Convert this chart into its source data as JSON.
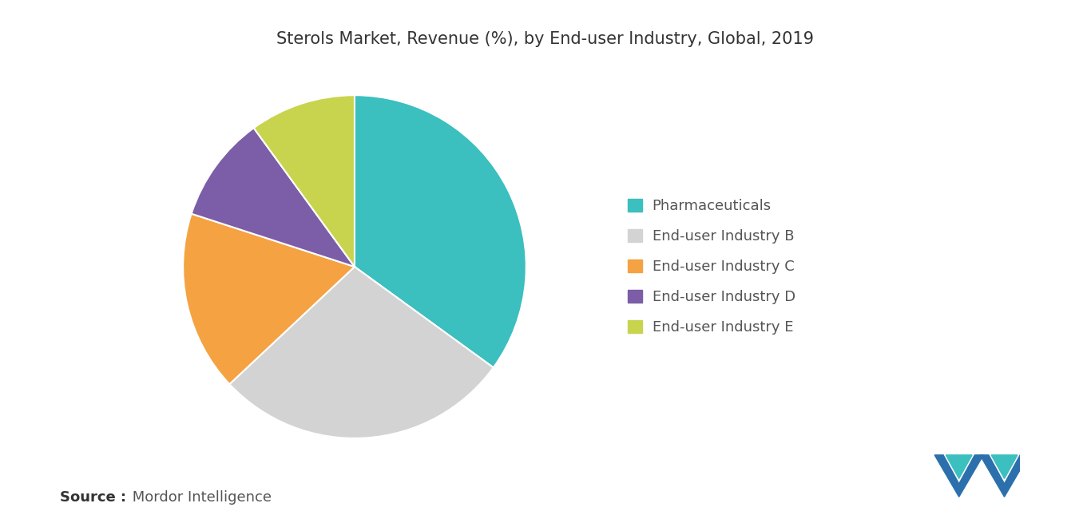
{
  "title": "Sterols Market, Revenue (%), by End-user Industry, Global, 2019",
  "title_fontsize": 15,
  "labels": [
    "Pharmaceuticals",
    "End-user Industry B",
    "End-user Industry C",
    "End-user Industry D",
    "End-user Industry E"
  ],
  "sizes": [
    35,
    28,
    17,
    10,
    10
  ],
  "colors": [
    "#3bbfbf",
    "#d3d3d3",
    "#f5a243",
    "#7b5ea7",
    "#c8d44e"
  ],
  "startangle": 90,
  "background_color": "#ffffff",
  "source_bold": "Source :",
  "source_text": " Mordor Intelligence",
  "source_fontsize": 13,
  "legend_fontsize": 13
}
